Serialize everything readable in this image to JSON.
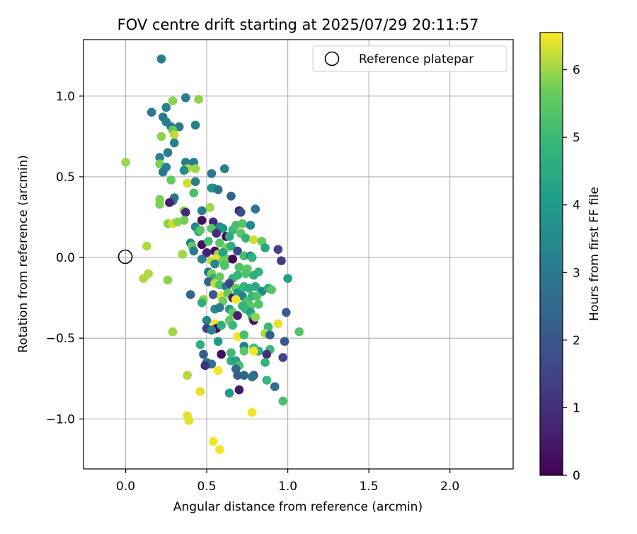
{
  "chart_data": {
    "type": "scatter",
    "title": "FOV centre drift starting at 2025/07/29 20:11:57",
    "xlabel": "Angular distance from reference (arcmin)",
    "ylabel": "Rotation from reference (arcmin)",
    "xlim": [
      -0.26,
      2.39
    ],
    "ylim": [
      -1.31,
      1.35
    ],
    "x_ticks": [
      0.0,
      0.5,
      1.0,
      1.5,
      2.0
    ],
    "x_tick_labels": [
      "0.0",
      "0.5",
      "1.0",
      "1.5",
      "2.0"
    ],
    "y_ticks": [
      1.0,
      0.5,
      0.0,
      -0.5,
      -1.0
    ],
    "y_tick_labels": [
      "1.0",
      "0.5",
      "0.0",
      "−0.5",
      "−1.0"
    ],
    "grid": true,
    "legend": {
      "position": "top-right",
      "entries": [
        "Reference platepar"
      ]
    },
    "reference_point": {
      "x": 0.0,
      "y": 0.0
    },
    "colormap": "viridis",
    "colorbar": {
      "label": "Hours from first FF file",
      "range": [
        0,
        6.55
      ],
      "ticks": [
        0,
        1,
        2,
        3,
        4,
        5,
        6
      ],
      "tick_labels": [
        "0",
        "1",
        "2",
        "3",
        "4",
        "5",
        "6"
      ]
    },
    "points": [
      {
        "x": 0.22,
        "y": 1.23,
        "c": 3.1
      },
      {
        "x": 0.16,
        "y": 0.9,
        "c": 3.0
      },
      {
        "x": 0.25,
        "y": 0.93,
        "c": 3.2
      },
      {
        "x": 0.37,
        "y": 0.99,
        "c": 3.1
      },
      {
        "x": 0.29,
        "y": 0.97,
        "c": 5.9
      },
      {
        "x": 0.45,
        "y": 0.98,
        "c": 5.9
      },
      {
        "x": 0.23,
        "y": 0.87,
        "c": 3.0
      },
      {
        "x": 0.25,
        "y": 0.84,
        "c": 3.2
      },
      {
        "x": 0.28,
        "y": 0.81,
        "c": 3.0
      },
      {
        "x": 0.33,
        "y": 0.81,
        "c": 3.0
      },
      {
        "x": 0.43,
        "y": 0.82,
        "c": 3.2
      },
      {
        "x": 0.29,
        "y": 0.79,
        "c": 5.5
      },
      {
        "x": 0.3,
        "y": 0.76,
        "c": 6.2
      },
      {
        "x": 0.22,
        "y": 0.75,
        "c": 5.9
      },
      {
        "x": 0.3,
        "y": 0.71,
        "c": 3.3
      },
      {
        "x": 0.26,
        "y": 0.65,
        "c": 3.1
      },
      {
        "x": 0.21,
        "y": 0.62,
        "c": 3.2
      },
      {
        "x": 0.21,
        "y": 0.58,
        "c": 5.8
      },
      {
        "x": 0.25,
        "y": 0.56,
        "c": 3.3
      },
      {
        "x": 0.37,
        "y": 0.59,
        "c": 3.2
      },
      {
        "x": 0.42,
        "y": 0.59,
        "c": 3.1
      },
      {
        "x": 0.0,
        "y": 0.59,
        "c": 6.0
      },
      {
        "x": 0.38,
        "y": 0.55,
        "c": 6.1
      },
      {
        "x": 0.43,
        "y": 0.55,
        "c": 6.0
      },
      {
        "x": 0.23,
        "y": 0.53,
        "c": 3.0
      },
      {
        "x": 0.36,
        "y": 0.54,
        "c": 3.6
      },
      {
        "x": 0.53,
        "y": 0.52,
        "c": 3.0
      },
      {
        "x": 0.61,
        "y": 0.55,
        "c": 3.3
      },
      {
        "x": 0.28,
        "y": 0.48,
        "c": 5.6
      },
      {
        "x": 0.38,
        "y": 0.46,
        "c": 6.3
      },
      {
        "x": 0.43,
        "y": 0.47,
        "c": 3.2
      },
      {
        "x": 0.54,
        "y": 0.43,
        "c": 3.4
      },
      {
        "x": 0.53,
        "y": 0.43,
        "c": 3.8
      },
      {
        "x": 0.57,
        "y": 0.42,
        "c": 2.8
      },
      {
        "x": 0.42,
        "y": 0.4,
        "c": 5.2
      },
      {
        "x": 0.65,
        "y": 0.38,
        "c": 2.3
      },
      {
        "x": 0.3,
        "y": 0.37,
        "c": 3.1
      },
      {
        "x": 0.29,
        "y": 0.35,
        "c": 2.7
      },
      {
        "x": 0.27,
        "y": 0.34,
        "c": 0.6
      },
      {
        "x": 0.21,
        "y": 0.36,
        "c": 5.8
      },
      {
        "x": 0.21,
        "y": 0.33,
        "c": 5.8
      },
      {
        "x": 0.52,
        "y": 0.31,
        "c": 6.0
      },
      {
        "x": 0.36,
        "y": 0.29,
        "c": 5.9
      },
      {
        "x": 0.37,
        "y": 0.28,
        "c": 0.9
      },
      {
        "x": 0.47,
        "y": 0.29,
        "c": 3.2
      },
      {
        "x": 0.7,
        "y": 0.29,
        "c": 0.5
      },
      {
        "x": 0.71,
        "y": 0.28,
        "c": 1.7
      },
      {
        "x": 0.8,
        "y": 0.3,
        "c": 2.9
      },
      {
        "x": 0.36,
        "y": 0.23,
        "c": 5.7
      },
      {
        "x": 0.26,
        "y": 0.21,
        "c": 5.9
      },
      {
        "x": 0.29,
        "y": 0.21,
        "c": 6.3
      },
      {
        "x": 0.32,
        "y": 0.22,
        "c": 5.9
      },
      {
        "x": 0.47,
        "y": 0.23,
        "c": 0.2
      },
      {
        "x": 0.54,
        "y": 0.22,
        "c": 0.9
      },
      {
        "x": 0.43,
        "y": 0.19,
        "c": 3.4
      },
      {
        "x": 0.45,
        "y": 0.16,
        "c": 4.6
      },
      {
        "x": 0.46,
        "y": 0.17,
        "c": 5.4
      },
      {
        "x": 0.53,
        "y": 0.18,
        "c": 5.4
      },
      {
        "x": 0.58,
        "y": 0.19,
        "c": 3.6
      },
      {
        "x": 0.6,
        "y": 0.18,
        "c": 3.8
      },
      {
        "x": 0.66,
        "y": 0.17,
        "c": 5.0
      },
      {
        "x": 0.68,
        "y": 0.2,
        "c": 5.2
      },
      {
        "x": 0.72,
        "y": 0.21,
        "c": 5.4
      },
      {
        "x": 0.77,
        "y": 0.2,
        "c": 3.4
      },
      {
        "x": 0.56,
        "y": 0.15,
        "c": 1.0
      },
      {
        "x": 0.62,
        "y": 0.13,
        "c": 0.2
      },
      {
        "x": 0.64,
        "y": 0.13,
        "c": 4.6
      },
      {
        "x": 0.71,
        "y": 0.15,
        "c": 5.4
      },
      {
        "x": 0.74,
        "y": 0.12,
        "c": 4.8
      },
      {
        "x": 0.79,
        "y": 0.11,
        "c": 6.3
      },
      {
        "x": 0.84,
        "y": 0.1,
        "c": 5.6
      },
      {
        "x": 0.4,
        "y": 0.09,
        "c": 3.2
      },
      {
        "x": 0.41,
        "y": 0.07,
        "c": 5.6
      },
      {
        "x": 0.47,
        "y": 0.08,
        "c": 0.3
      },
      {
        "x": 0.51,
        "y": 0.1,
        "c": 5.1
      },
      {
        "x": 0.58,
        "y": 0.09,
        "c": 5.4
      },
      {
        "x": 0.62,
        "y": 0.06,
        "c": 5.8
      },
      {
        "x": 0.65,
        "y": 0.07,
        "c": 4.6
      },
      {
        "x": 0.69,
        "y": 0.04,
        "c": 1.6
      },
      {
        "x": 0.86,
        "y": 0.06,
        "c": 4.4
      },
      {
        "x": 0.94,
        "y": 0.05,
        "c": 1.5
      },
      {
        "x": 0.13,
        "y": 0.07,
        "c": 6.1
      },
      {
        "x": 0.35,
        "y": 0.02,
        "c": 6.0
      },
      {
        "x": 0.42,
        "y": 0.04,
        "c": 3.1
      },
      {
        "x": 0.5,
        "y": 0.03,
        "c": 0.7
      },
      {
        "x": 0.55,
        "y": 0.04,
        "c": 0.2
      },
      {
        "x": 0.57,
        "y": 0.02,
        "c": 6.0
      },
      {
        "x": 0.6,
        "y": 0.03,
        "c": 4.3
      },
      {
        "x": 0.63,
        "y": -0.01,
        "c": 5.6
      },
      {
        "x": 0.66,
        "y": -0.01,
        "c": 0.1
      },
      {
        "x": 0.73,
        "y": 0.01,
        "c": 5.2
      },
      {
        "x": 0.77,
        "y": 0.01,
        "c": 3.4
      },
      {
        "x": 0.78,
        "y": 0.0,
        "c": 4.8
      },
      {
        "x": 0.96,
        "y": -0.02,
        "c": 1.3
      },
      {
        "x": 0.47,
        "y": -0.01,
        "c": 3.3
      },
      {
        "x": 0.53,
        "y": -0.02,
        "c": 6.2
      },
      {
        "x": 0.56,
        "y": -0.01,
        "c": 6.4
      },
      {
        "x": 0.6,
        "y": -0.02,
        "c": 5.7
      },
      {
        "x": 0.55,
        "y": -0.04,
        "c": 3.4
      },
      {
        "x": 0.61,
        "y": -0.05,
        "c": 5.3
      },
      {
        "x": 0.7,
        "y": -0.06,
        "c": 5.3
      },
      {
        "x": 0.75,
        "y": -0.07,
        "c": 5.5
      },
      {
        "x": 0.82,
        "y": -0.09,
        "c": 4.8
      },
      {
        "x": 0.51,
        "y": -0.09,
        "c": 2.8
      },
      {
        "x": 0.53,
        "y": -0.1,
        "c": 5.8
      },
      {
        "x": 0.54,
        "y": -0.13,
        "c": 4.6
      },
      {
        "x": 0.58,
        "y": -0.12,
        "c": 5.6
      },
      {
        "x": 0.66,
        "y": -0.13,
        "c": 4.8
      },
      {
        "x": 0.69,
        "y": -0.11,
        "c": 4.9
      },
      {
        "x": 0.74,
        "y": -0.1,
        "c": 5.3
      },
      {
        "x": 0.79,
        "y": -0.11,
        "c": 4.7
      },
      {
        "x": 1.0,
        "y": -0.13,
        "c": 4.2
      },
      {
        "x": 0.14,
        "y": -0.1,
        "c": 6.1
      },
      {
        "x": 0.11,
        "y": -0.13,
        "c": 6.1
      },
      {
        "x": 0.51,
        "y": -0.15,
        "c": 2.3
      },
      {
        "x": 0.55,
        "y": -0.16,
        "c": 6.2
      },
      {
        "x": 0.58,
        "y": -0.17,
        "c": 5.3
      },
      {
        "x": 0.62,
        "y": -0.18,
        "c": 2.9
      },
      {
        "x": 0.64,
        "y": -0.16,
        "c": 1.5
      },
      {
        "x": 0.68,
        "y": -0.19,
        "c": 5.6
      },
      {
        "x": 0.71,
        "y": -0.2,
        "c": 5.2
      },
      {
        "x": 0.73,
        "y": -0.18,
        "c": 4.9
      },
      {
        "x": 0.76,
        "y": -0.19,
        "c": 4.6
      },
      {
        "x": 0.8,
        "y": -0.18,
        "c": 4.5
      },
      {
        "x": 0.84,
        "y": -0.21,
        "c": 3.5
      },
      {
        "x": 0.88,
        "y": -0.19,
        "c": 4.7
      },
      {
        "x": 0.9,
        "y": -0.2,
        "c": 5.4
      },
      {
        "x": 0.26,
        "y": -0.14,
        "c": 5.9
      },
      {
        "x": 0.4,
        "y": -0.23,
        "c": 2.4
      },
      {
        "x": 0.54,
        "y": -0.23,
        "c": 2.0
      },
      {
        "x": 0.59,
        "y": -0.24,
        "c": 6.4
      },
      {
        "x": 0.63,
        "y": -0.22,
        "c": 5.6
      },
      {
        "x": 0.66,
        "y": -0.25,
        "c": 0.6
      },
      {
        "x": 0.69,
        "y": -0.22,
        "c": 4.0
      },
      {
        "x": 0.72,
        "y": -0.24,
        "c": 3.2
      },
      {
        "x": 0.75,
        "y": -0.27,
        "c": 5.2
      },
      {
        "x": 0.78,
        "y": -0.24,
        "c": 4.9
      },
      {
        "x": 0.81,
        "y": -0.24,
        "c": 5.3
      },
      {
        "x": 0.48,
        "y": -0.26,
        "c": 5.9
      },
      {
        "x": 0.47,
        "y": -0.28,
        "c": 4.7
      },
      {
        "x": 0.6,
        "y": -0.27,
        "c": 5.7
      },
      {
        "x": 0.68,
        "y": -0.26,
        "c": 6.5
      },
      {
        "x": 0.72,
        "y": -0.3,
        "c": 4.8
      },
      {
        "x": 0.77,
        "y": -0.3,
        "c": 5.5
      },
      {
        "x": 0.82,
        "y": -0.29,
        "c": 5.3
      },
      {
        "x": 0.55,
        "y": -0.32,
        "c": 3.5
      },
      {
        "x": 0.58,
        "y": -0.31,
        "c": 3.0
      },
      {
        "x": 0.64,
        "y": -0.32,
        "c": 4.0
      },
      {
        "x": 0.66,
        "y": -0.34,
        "c": 5.5
      },
      {
        "x": 0.74,
        "y": -0.32,
        "c": 4.9
      },
      {
        "x": 0.77,
        "y": -0.34,
        "c": 4.2
      },
      {
        "x": 0.69,
        "y": -0.36,
        "c": 0.7
      },
      {
        "x": 0.78,
        "y": -0.37,
        "c": 5.0
      },
      {
        "x": 0.99,
        "y": -0.34,
        "c": 2.1
      },
      {
        "x": 0.5,
        "y": -0.39,
        "c": 3.4
      },
      {
        "x": 0.55,
        "y": -0.41,
        "c": 6.5
      },
      {
        "x": 0.56,
        "y": -0.43,
        "c": 6.3
      },
      {
        "x": 0.56,
        "y": -0.44,
        "c": 0.2
      },
      {
        "x": 0.64,
        "y": -0.39,
        "c": 5.6
      },
      {
        "x": 0.66,
        "y": -0.42,
        "c": 4.9
      },
      {
        "x": 0.79,
        "y": -0.39,
        "c": 0.3
      },
      {
        "x": 0.8,
        "y": -0.37,
        "c": 5.9
      },
      {
        "x": 0.88,
        "y": -0.43,
        "c": 5.0
      },
      {
        "x": 0.94,
        "y": -0.41,
        "c": 6.4
      },
      {
        "x": 0.5,
        "y": -0.44,
        "c": 1.4
      },
      {
        "x": 0.53,
        "y": -0.45,
        "c": 3.2
      },
      {
        "x": 0.59,
        "y": -0.42,
        "c": 4.7
      },
      {
        "x": 0.29,
        "y": -0.46,
        "c": 6.0
      },
      {
        "x": 1.07,
        "y": -0.46,
        "c": 5.3
      },
      {
        "x": 0.69,
        "y": -0.49,
        "c": 6.5
      },
      {
        "x": 0.73,
        "y": -0.48,
        "c": 5.2
      },
      {
        "x": 0.86,
        "y": -0.47,
        "c": 6.1
      },
      {
        "x": 0.89,
        "y": -0.48,
        "c": 2.3
      },
      {
        "x": 0.98,
        "y": -0.52,
        "c": 2.0
      },
      {
        "x": 0.46,
        "y": -0.54,
        "c": 4.7
      },
      {
        "x": 0.57,
        "y": -0.52,
        "c": 4.0
      },
      {
        "x": 0.73,
        "y": -0.55,
        "c": 3.2
      },
      {
        "x": 0.79,
        "y": -0.56,
        "c": 5.2
      },
      {
        "x": 0.82,
        "y": -0.58,
        "c": 4.6
      },
      {
        "x": 0.73,
        "y": -0.58,
        "c": 5.5
      },
      {
        "x": 0.79,
        "y": -0.58,
        "c": 6.5
      },
      {
        "x": 0.89,
        "y": -0.57,
        "c": 5.0
      },
      {
        "x": 0.48,
        "y": -0.6,
        "c": 2.2
      },
      {
        "x": 0.59,
        "y": -0.6,
        "c": 0.3
      },
      {
        "x": 0.65,
        "y": -0.59,
        "c": 5.0
      },
      {
        "x": 0.87,
        "y": -0.6,
        "c": 1.0
      },
      {
        "x": 0.97,
        "y": -0.62,
        "c": 1.5
      },
      {
        "x": 0.5,
        "y": -0.65,
        "c": 3.0
      },
      {
        "x": 0.53,
        "y": -0.66,
        "c": 2.8
      },
      {
        "x": 0.49,
        "y": -0.67,
        "c": 1.0
      },
      {
        "x": 0.65,
        "y": -0.64,
        "c": 4.7
      },
      {
        "x": 0.68,
        "y": -0.64,
        "c": 4.2
      },
      {
        "x": 0.7,
        "y": -0.67,
        "c": 5.2
      },
      {
        "x": 0.86,
        "y": -0.65,
        "c": 4.8
      },
      {
        "x": 0.68,
        "y": -0.69,
        "c": 2.4
      },
      {
        "x": 0.69,
        "y": -0.73,
        "c": 2.2
      },
      {
        "x": 0.73,
        "y": -0.73,
        "c": 2.3
      },
      {
        "x": 0.79,
        "y": -0.73,
        "c": 2.0
      },
      {
        "x": 0.38,
        "y": -0.73,
        "c": 6.1
      },
      {
        "x": 0.78,
        "y": -0.74,
        "c": 2.8
      },
      {
        "x": 0.57,
        "y": -0.7,
        "c": 6.5
      },
      {
        "x": 0.87,
        "y": -0.76,
        "c": 4.9
      },
      {
        "x": 0.92,
        "y": -0.8,
        "c": 2.7
      },
      {
        "x": 0.46,
        "y": -0.83,
        "c": 6.4
      },
      {
        "x": 0.7,
        "y": -0.82,
        "c": 0.5
      },
      {
        "x": 0.64,
        "y": -0.84,
        "c": 4.0
      },
      {
        "x": 0.97,
        "y": -0.89,
        "c": 5.2
      },
      {
        "x": 0.78,
        "y": -0.96,
        "c": 6.5
      },
      {
        "x": 0.38,
        "y": -0.98,
        "c": 6.4
      },
      {
        "x": 0.39,
        "y": -1.01,
        "c": 6.4
      },
      {
        "x": 0.54,
        "y": -1.14,
        "c": 6.5
      },
      {
        "x": 0.58,
        "y": -1.19,
        "c": 6.5
      }
    ]
  }
}
